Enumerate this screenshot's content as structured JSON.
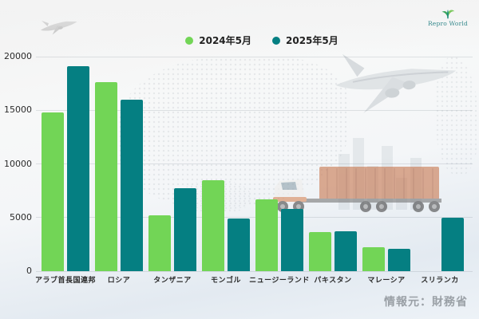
{
  "page": {
    "logo_text": "Repro World",
    "source": "情報元：財務省"
  },
  "chart_data": {
    "type": "bar",
    "categories": [
      "アラブ首長国連邦",
      "ロシア",
      "タンザニア",
      "モンゴル",
      "ニュージーランド",
      "パキスタン",
      "マレーシア",
      "スリランカ"
    ],
    "series": [
      {
        "name": "2024年5月",
        "color": "#72d556",
        "values": [
          14800,
          17600,
          5200,
          8500,
          6700,
          3650,
          2200,
          0
        ]
      },
      {
        "name": "2025年5月",
        "color": "#057f82",
        "values": [
          19100,
          16000,
          7700,
          4900,
          5800,
          3750,
          2100,
          4950
        ]
      }
    ],
    "title": "",
    "xlabel": "",
    "ylabel": "",
    "ylim": [
      0,
      20000
    ],
    "yticks": [
      0,
      5000,
      10000,
      15000,
      20000
    ],
    "grid": true,
    "legend_position": "top-center"
  },
  "background": {
    "decorations": [
      "world-map-dots",
      "small-airplane",
      "large-airplane",
      "container-truck",
      "city-skyline"
    ],
    "accent_colors": {
      "container_orange": "#c97a52",
      "plane_gray": "#d9dde0"
    }
  }
}
